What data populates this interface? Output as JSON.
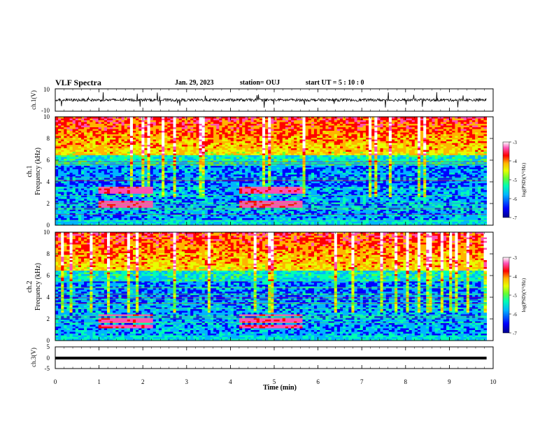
{
  "header": {
    "title": "VLF Spectra",
    "date": "Jan. 29, 2023",
    "station": "station= OUJ",
    "start": "start  UT =   5  : 10 : 0"
  },
  "chart_data": [
    {
      "type": "line",
      "panel": "ch1-waveform",
      "ylabel": "ch.1(V)",
      "ylim": [
        -10,
        10
      ],
      "y_ticks": [
        "10",
        "-10"
      ],
      "x": [
        0,
        10
      ],
      "y": [
        0,
        0
      ],
      "note": "dense noisy waveform around 0 V"
    },
    {
      "type": "heatmap",
      "panel": "ch1-spectrogram",
      "ylabel": "ch.1\nFrequency (kHz)",
      "ylabel_line1": "ch.1",
      "ylabel_line2": "Frequency  (kHz)",
      "ylim": [
        0,
        10
      ],
      "y_ticks": [
        "0",
        "2",
        "4",
        "6",
        "8",
        "10"
      ],
      "xlim": [
        0,
        9.85
      ],
      "colorbar": {
        "label": "log(PSD)(V²/Hz)",
        "range": [
          -7,
          -3
        ],
        "ticks": [
          "-3",
          "-4",
          "-5",
          "-6",
          "-7"
        ]
      },
      "features": {
        "tone_bursts": [
          [
            1.0,
            2.2
          ],
          [
            4.2,
            5.65
          ]
        ],
        "burst_freqs_khz": [
          1.8,
          2.0,
          2.2,
          3.1,
          3.3,
          3.5
        ],
        "quiet_band_khz": [
          3.5,
          6.0
        ]
      }
    },
    {
      "type": "heatmap",
      "panel": "ch2-spectrogram",
      "ylabel_line1": "ch.2",
      "ylabel_line2": "Frequency  (kHz)",
      "ylim": [
        0,
        10
      ],
      "y_ticks": [
        "0",
        "2",
        "4",
        "6",
        "8",
        "10"
      ],
      "xlim": [
        0,
        9.85
      ],
      "colorbar": {
        "label": "log(PSD)(V²/Hz)",
        "range": [
          -7,
          -3
        ],
        "ticks": [
          "-3",
          "-4",
          "-5",
          "-6",
          "-7"
        ]
      },
      "features": {
        "tone_bursts": [
          [
            1.0,
            2.2
          ],
          [
            4.2,
            5.65
          ]
        ],
        "burst_freqs_khz": [
          1.2,
          1.4,
          1.8,
          2.0,
          2.3
        ],
        "quiet_band_khz": [
          3.5,
          6.0
        ]
      }
    },
    {
      "type": "line",
      "panel": "ch3-waveform",
      "ylabel": "ch.3(V)",
      "ylim": [
        -5,
        5
      ],
      "y_ticks": [
        "5",
        "0",
        "-5"
      ],
      "x": [
        0,
        9.85
      ],
      "y": [
        0,
        0
      ]
    }
  ],
  "x_axis": {
    "label": "Time  (min)",
    "range": [
      0,
      10
    ],
    "ticks": [
      "0",
      "1",
      "2",
      "3",
      "4",
      "5",
      "6",
      "7",
      "8",
      "9",
      "10"
    ]
  },
  "colors": {
    "colormap": [
      "#00008c",
      "#0000ff",
      "#00b4ff",
      "#00ffb4",
      "#64ff32",
      "#e6ff00",
      "#ffb400",
      "#ff0000",
      "#ff50b4",
      "#ffffff"
    ],
    "waveform": "#000000"
  }
}
